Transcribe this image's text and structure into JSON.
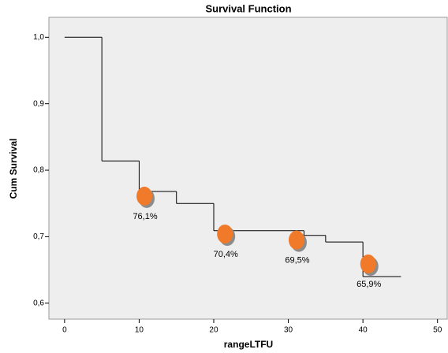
{
  "chart_data": {
    "type": "step",
    "title": "Survival Function",
    "x_label": "rangeLTFU",
    "y_label": "Cum Survival",
    "xlim": [
      -2.1,
      51.3
    ],
    "ylim": [
      0.576,
      1.03
    ],
    "xticks": [
      0,
      10,
      20,
      30,
      40,
      50
    ],
    "yticks": [
      {
        "value": 0.6,
        "label": "0,6"
      },
      {
        "value": 0.7,
        "label": "0,7"
      },
      {
        "value": 0.8,
        "label": "0,8"
      },
      {
        "value": 0.9,
        "label": "0,9"
      },
      {
        "value": 1.0,
        "label": "1,0"
      }
    ],
    "background": "#eeeeee",
    "series": [
      {
        "color": "#000000",
        "x": [
          0,
          5,
          10,
          15,
          20,
          32.1,
          35,
          40,
          45.1
        ],
        "values": [
          1.0,
          0.814,
          0.768,
          0.75,
          0.709,
          0.702,
          0.692,
          0.64,
          0.64
        ]
      }
    ],
    "annotations": {
      "color": "#f07a2a",
      "shadow": "#8c8c8c",
      "x": [
        10.7,
        21.5,
        31.1,
        40.7
      ],
      "values": [
        0.761,
        0.704,
        0.695,
        0.659
      ],
      "value_labels": [
        "76,1%",
        "70,4%",
        "69,5%",
        "65,9%"
      ]
    }
  }
}
